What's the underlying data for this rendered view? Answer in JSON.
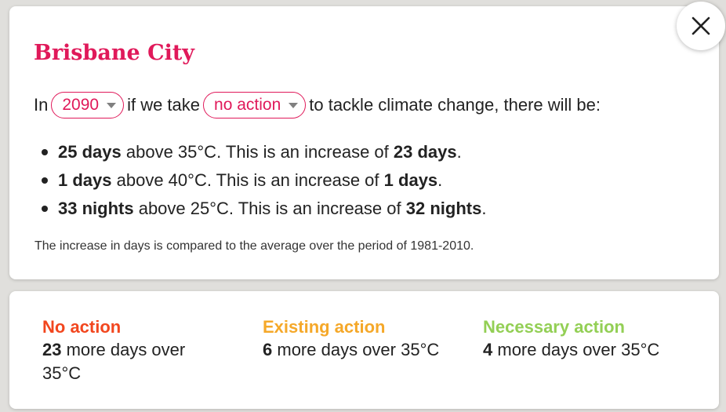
{
  "panel": {
    "title": "Brisbane City",
    "sentence": {
      "prefix": "In",
      "year_value": "2090",
      "middle": "if we take",
      "action_value": "no action",
      "suffix": "to tackle climate change, there will be:"
    },
    "bullets": [
      {
        "amount": "25 days",
        "text": "above 35°C. This is an increase of",
        "increase": "23 days",
        "end": "."
      },
      {
        "amount": "1 days",
        "text": "above 40°C. This is an increase of",
        "increase": "1 days",
        "end": "."
      },
      {
        "amount": "33 nights",
        "text": "above 25°C. This is an increase of",
        "increase": "32 nights",
        "end": "."
      }
    ],
    "footnote": "The increase in days is compared to the average over the period of 1981-2010.",
    "close_icon": "close-icon"
  },
  "scenarios": [
    {
      "name": "No action",
      "value": "23",
      "text": "more days over 35°C",
      "color": "#f2461e"
    },
    {
      "name": "Existing action",
      "value": "6",
      "text": "more days over 35°C",
      "color": "#f5a829"
    },
    {
      "name": "Necessary action",
      "value": "4",
      "text": "more days over 35°C",
      "color": "#93cf55"
    }
  ],
  "colors": {
    "accent": "#e0195a",
    "background": "#e0dfdc",
    "card": "#ffffff"
  }
}
